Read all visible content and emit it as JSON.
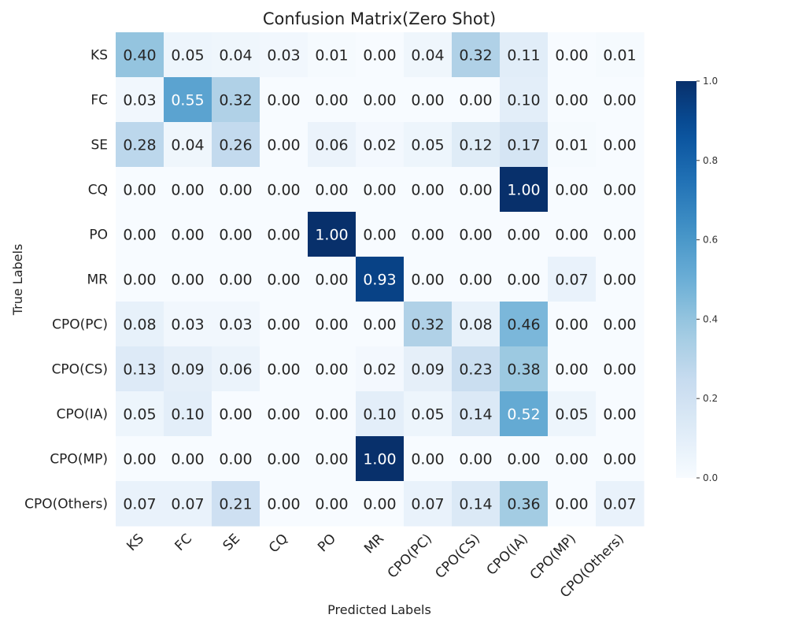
{
  "chart_data": {
    "type": "heatmap",
    "title": "Confusion Matrix(Zero Shot)",
    "xlabel": "Predicted Labels",
    "ylabel": "True Labels",
    "x_categories": [
      "KS",
      "FC",
      "SE",
      "CQ",
      "PO",
      "MR",
      "CPO(PC)",
      "CPO(CS)",
      "CPO(IA)",
      "CPO(MP)",
      "CPO(Others)"
    ],
    "y_categories": [
      "KS",
      "FC",
      "SE",
      "CQ",
      "PO",
      "MR",
      "CPO(PC)",
      "CPO(CS)",
      "CPO(IA)",
      "CPO(MP)",
      "CPO(Others)"
    ],
    "values": [
      [
        "0.40",
        "0.05",
        "0.04",
        "0.03",
        "0.01",
        "0.00",
        "0.04",
        "0.32",
        "0.11",
        "0.00",
        "0.01"
      ],
      [
        "0.03",
        "0.55",
        "0.32",
        "0.00",
        "0.00",
        "0.00",
        "0.00",
        "0.00",
        "0.10",
        "0.00",
        "0.00"
      ],
      [
        "0.28",
        "0.04",
        "0.26",
        "0.00",
        "0.06",
        "0.02",
        "0.05",
        "0.12",
        "0.17",
        "0.01",
        "0.00"
      ],
      [
        "0.00",
        "0.00",
        "0.00",
        "0.00",
        "0.00",
        "0.00",
        "0.00",
        "0.00",
        "1.00",
        "0.00",
        "0.00"
      ],
      [
        "0.00",
        "0.00",
        "0.00",
        "0.00",
        "1.00",
        "0.00",
        "0.00",
        "0.00",
        "0.00",
        "0.00",
        "0.00"
      ],
      [
        "0.00",
        "0.00",
        "0.00",
        "0.00",
        "0.00",
        "0.93",
        "0.00",
        "0.00",
        "0.00",
        "0.07",
        "0.00"
      ],
      [
        "0.08",
        "0.03",
        "0.03",
        "0.00",
        "0.00",
        "0.00",
        "0.32",
        "0.08",
        "0.46",
        "0.00",
        "0.00"
      ],
      [
        "0.13",
        "0.09",
        "0.06",
        "0.00",
        "0.00",
        "0.02",
        "0.09",
        "0.23",
        "0.38",
        "0.00",
        "0.00"
      ],
      [
        "0.05",
        "0.10",
        "0.00",
        "0.00",
        "0.00",
        "0.10",
        "0.05",
        "0.14",
        "0.52",
        "0.05",
        "0.00"
      ],
      [
        "0.00",
        "0.00",
        "0.00",
        "0.00",
        "0.00",
        "1.00",
        "0.00",
        "0.00",
        "0.00",
        "0.00",
        "0.00"
      ],
      [
        "0.07",
        "0.07",
        "0.21",
        "0.00",
        "0.00",
        "0.00",
        "0.07",
        "0.14",
        "0.36",
        "0.00",
        "0.07"
      ]
    ],
    "colorbar": {
      "range": [
        0.0,
        1.0
      ],
      "ticks": [
        "0.0",
        "0.2",
        "0.4",
        "0.6",
        "0.8",
        "1.0"
      ],
      "colormap": "Blues",
      "low_color": "#f7fbff",
      "high_color": "#08306b"
    },
    "grid": false
  }
}
